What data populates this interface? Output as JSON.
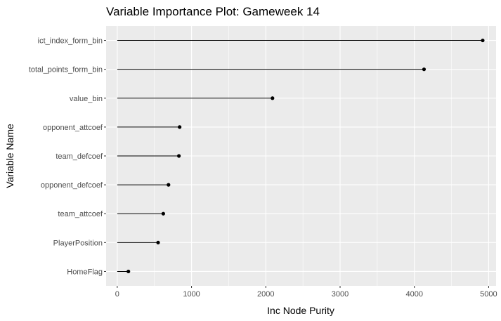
{
  "chart_data": {
    "type": "lollipop",
    "title": "Variable Importance Plot: Gameweek 14",
    "xlabel": "Inc Node Purity",
    "ylabel": "Variable Name",
    "xlim": [
      -150,
      5100
    ],
    "xticks": [
      0,
      1000,
      2000,
      3000,
      4000,
      5000
    ],
    "xtick_labels": [
      "0",
      "1000",
      "2000",
      "3000",
      "4000",
      "5000"
    ],
    "grid": true,
    "categories": [
      "ict_index_form_bin",
      "total_points_form_bin",
      "value_bin",
      "opponent_attcoef",
      "team_defcoef",
      "opponent_defcoef",
      "team_attcoef",
      "PlayerPosition",
      "HomeFlag"
    ],
    "values": [
      4920,
      4130,
      2090,
      840,
      830,
      690,
      620,
      550,
      150
    ],
    "colors": {
      "panel": "#ebebeb",
      "grid": "#ffffff",
      "mark": "#000000"
    }
  }
}
